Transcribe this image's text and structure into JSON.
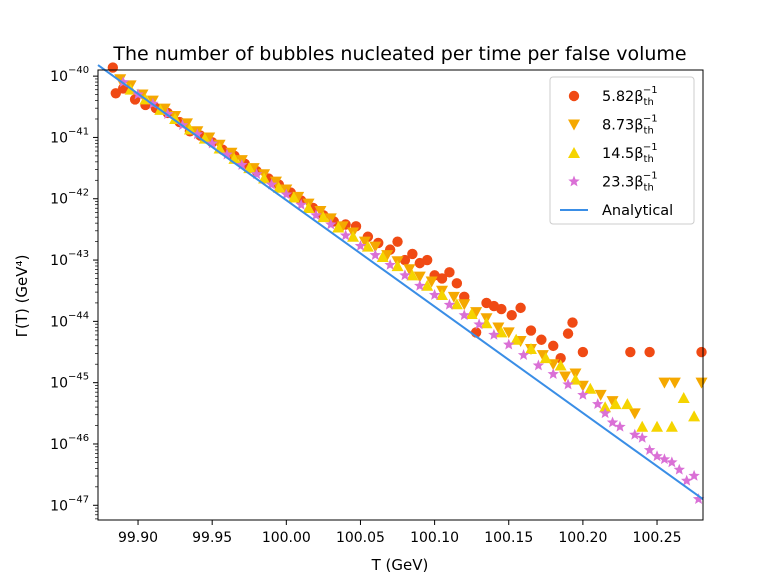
{
  "chart_data": {
    "type": "scatter",
    "title": "The number of bubbles nucleated per time per false volume",
    "xlabel": "T (GeV)",
    "ylabel": "Γ(T) (GeV⁴)",
    "xlim": [
      99.873,
      100.281
    ],
    "ylog_exp_lim": [
      -47.24,
      -39.9
    ],
    "x_ticks": [
      {
        "value": 99.9,
        "label": "99.90"
      },
      {
        "value": 99.95,
        "label": "99.95"
      },
      {
        "value": 100.0,
        "label": "100.00"
      },
      {
        "value": 100.05,
        "label": "100.05"
      },
      {
        "value": 100.1,
        "label": "100.10"
      },
      {
        "value": 100.15,
        "label": "100.15"
      },
      {
        "value": 100.2,
        "label": "100.20"
      },
      {
        "value": 100.25,
        "label": "100.25"
      }
    ],
    "y_ticks": [
      {
        "exp": -40,
        "base": "10",
        "sup": "−40"
      },
      {
        "exp": -41,
        "base": "10",
        "sup": "−41"
      },
      {
        "exp": -42,
        "base": "10",
        "sup": "−42"
      },
      {
        "exp": -43,
        "base": "10",
        "sup": "−43"
      },
      {
        "exp": -44,
        "base": "10",
        "sup": "−44"
      },
      {
        "exp": -45,
        "base": "10",
        "sup": "−45"
      },
      {
        "exp": -46,
        "base": "10",
        "sup": "−46"
      },
      {
        "exp": -47,
        "base": "10",
        "sup": "−47"
      }
    ],
    "series": [
      {
        "name": "5.82β_th^-1",
        "label_main": "5.82β",
        "label_sub": "th",
        "label_sup": "−1",
        "marker": "circle",
        "color": "#f04a14",
        "points": [
          [
            99.883,
            -39.86
          ],
          [
            99.885,
            -40.28
          ],
          [
            99.89,
            -40.2
          ],
          [
            99.898,
            -40.38
          ],
          [
            99.905,
            -40.47
          ],
          [
            99.912,
            -40.52
          ],
          [
            99.92,
            -40.6
          ],
          [
            99.928,
            -40.75
          ],
          [
            99.935,
            -40.9
          ],
          [
            99.942,
            -40.97
          ],
          [
            99.95,
            -41.08
          ],
          [
            99.957,
            -41.2
          ],
          [
            99.965,
            -41.3
          ],
          [
            99.972,
            -41.43
          ],
          [
            99.98,
            -41.55
          ],
          [
            99.988,
            -41.67
          ],
          [
            99.995,
            -41.77
          ],
          [
            100.003,
            -41.9
          ],
          [
            100.01,
            -42.03
          ],
          [
            100.018,
            -42.15
          ],
          [
            100.025,
            -42.27
          ],
          [
            100.032,
            -42.37
          ],
          [
            100.04,
            -42.42
          ],
          [
            100.047,
            -42.45
          ],
          [
            100.055,
            -42.62
          ],
          [
            100.062,
            -42.72
          ],
          [
            100.07,
            -42.83
          ],
          [
            100.075,
            -42.7
          ],
          [
            100.08,
            -43.0
          ],
          [
            100.085,
            -42.9
          ],
          [
            100.09,
            -43.05
          ],
          [
            100.095,
            -43.0
          ],
          [
            100.1,
            -43.25
          ],
          [
            100.105,
            -43.3
          ],
          [
            100.11,
            -43.2
          ],
          [
            100.115,
            -43.38
          ],
          [
            100.12,
            -43.6
          ],
          [
            100.128,
            -44.18
          ],
          [
            100.135,
            -43.7
          ],
          [
            100.14,
            -43.75
          ],
          [
            100.145,
            -43.8
          ],
          [
            100.152,
            -43.9
          ],
          [
            100.158,
            -43.78
          ],
          [
            100.165,
            -44.15
          ],
          [
            100.172,
            -44.3
          ],
          [
            100.18,
            -44.4
          ],
          [
            100.185,
            -44.6
          ],
          [
            100.19,
            -44.2
          ],
          [
            100.193,
            -44.02
          ],
          [
            100.2,
            -44.5
          ],
          [
            100.232,
            -44.5
          ],
          [
            100.245,
            -44.5
          ],
          [
            100.28,
            -44.5
          ]
        ]
      },
      {
        "name": "8.73β_th^-1",
        "label_main": "8.73β",
        "label_sub": "th",
        "label_sup": "−1",
        "marker": "triangle-down",
        "color": "#f5a800",
        "points": [
          [
            99.888,
            -40.05
          ],
          [
            99.895,
            -40.15
          ],
          [
            99.903,
            -40.3
          ],
          [
            99.91,
            -40.4
          ],
          [
            99.918,
            -40.53
          ],
          [
            99.925,
            -40.65
          ],
          [
            99.933,
            -40.77
          ],
          [
            99.94,
            -40.9
          ],
          [
            99.948,
            -41.0
          ],
          [
            99.955,
            -41.12
          ],
          [
            99.963,
            -41.25
          ],
          [
            99.97,
            -41.37
          ],
          [
            99.978,
            -41.5
          ],
          [
            99.985,
            -41.6
          ],
          [
            99.993,
            -41.72
          ],
          [
            100.0,
            -41.85
          ],
          [
            100.008,
            -41.97
          ],
          [
            100.015,
            -42.08
          ],
          [
            100.023,
            -42.2
          ],
          [
            100.03,
            -42.32
          ],
          [
            100.038,
            -42.45
          ],
          [
            100.045,
            -42.55
          ],
          [
            100.053,
            -42.7
          ],
          [
            100.06,
            -42.78
          ],
          [
            100.068,
            -42.92
          ],
          [
            100.075,
            -43.02
          ],
          [
            100.083,
            -43.15
          ],
          [
            100.09,
            -43.27
          ],
          [
            100.098,
            -43.35
          ],
          [
            100.105,
            -43.5
          ],
          [
            100.113,
            -43.6
          ],
          [
            100.12,
            -43.72
          ],
          [
            100.128,
            -43.85
          ],
          [
            100.135,
            -43.95
          ],
          [
            100.143,
            -44.1
          ],
          [
            100.15,
            -44.18
          ],
          [
            100.158,
            -44.32
          ],
          [
            100.165,
            -44.45
          ],
          [
            100.173,
            -44.55
          ],
          [
            100.18,
            -44.7
          ],
          [
            100.188,
            -44.9
          ],
          [
            100.195,
            -44.85
          ],
          [
            100.2,
            -45.05
          ],
          [
            100.212,
            -45.2
          ],
          [
            100.22,
            -45.3
          ],
          [
            100.235,
            -45.5
          ],
          [
            100.255,
            -45.0
          ],
          [
            100.262,
            -45.0
          ],
          [
            100.28,
            -45.0
          ]
        ]
      },
      {
        "name": "14.5β_th^-1",
        "label_main": "14.5β",
        "label_sub": "th",
        "label_sup": "−1",
        "marker": "triangle-up",
        "color": "#f5d400",
        "points": [
          [
            99.895,
            -40.22
          ],
          [
            99.905,
            -40.38
          ],
          [
            99.915,
            -40.55
          ],
          [
            99.925,
            -40.7
          ],
          [
            99.935,
            -40.87
          ],
          [
            99.945,
            -41.02
          ],
          [
            99.955,
            -41.18
          ],
          [
            99.965,
            -41.35
          ],
          [
            99.975,
            -41.5
          ],
          [
            99.985,
            -41.67
          ],
          [
            99.995,
            -41.82
          ],
          [
            100.005,
            -41.98
          ],
          [
            100.015,
            -42.15
          ],
          [
            100.025,
            -42.3
          ],
          [
            100.035,
            -42.47
          ],
          [
            100.045,
            -42.62
          ],
          [
            100.055,
            -42.78
          ],
          [
            100.065,
            -42.95
          ],
          [
            100.075,
            -43.1
          ],
          [
            100.085,
            -43.25
          ],
          [
            100.095,
            -43.42
          ],
          [
            100.105,
            -43.57
          ],
          [
            100.115,
            -43.72
          ],
          [
            100.125,
            -43.88
          ],
          [
            100.135,
            -44.03
          ],
          [
            100.145,
            -44.18
          ],
          [
            100.155,
            -44.3
          ],
          [
            100.165,
            -44.45
          ],
          [
            100.175,
            -44.6
          ],
          [
            100.185,
            -44.72
          ],
          [
            100.195,
            -44.95
          ],
          [
            100.205,
            -45.1
          ],
          [
            100.215,
            -45.4
          ],
          [
            100.222,
            -45.35
          ],
          [
            100.23,
            -45.35
          ],
          [
            100.24,
            -45.72
          ],
          [
            100.25,
            -45.72
          ],
          [
            100.26,
            -45.72
          ],
          [
            100.268,
            -45.25
          ],
          [
            100.275,
            -45.55
          ]
        ]
      },
      {
        "name": "23.3β_th^-1",
        "label_main": "23.3β",
        "label_sub": "th",
        "label_sup": "−1",
        "marker": "star",
        "color": "#da70d6",
        "points": [
          [
            99.89,
            -40.1
          ],
          [
            99.9,
            -40.3
          ],
          [
            99.91,
            -40.45
          ],
          [
            99.92,
            -40.62
          ],
          [
            99.93,
            -40.8
          ],
          [
            99.94,
            -40.95
          ],
          [
            99.95,
            -41.1
          ],
          [
            99.96,
            -41.28
          ],
          [
            99.97,
            -41.45
          ],
          [
            99.98,
            -41.6
          ],
          [
            99.99,
            -41.77
          ],
          [
            100.0,
            -41.93
          ],
          [
            100.01,
            -42.1
          ],
          [
            100.02,
            -42.27
          ],
          [
            100.03,
            -42.42
          ],
          [
            100.04,
            -42.6
          ],
          [
            100.05,
            -42.77
          ],
          [
            100.06,
            -42.92
          ],
          [
            100.07,
            -43.08
          ],
          [
            100.08,
            -43.25
          ],
          [
            100.09,
            -43.42
          ],
          [
            100.1,
            -43.57
          ],
          [
            100.11,
            -43.73
          ],
          [
            100.12,
            -43.9
          ],
          [
            100.13,
            -44.05
          ],
          [
            100.14,
            -44.22
          ],
          [
            100.15,
            -44.38
          ],
          [
            100.16,
            -44.55
          ],
          [
            100.17,
            -44.72
          ],
          [
            100.18,
            -44.86
          ],
          [
            100.19,
            -45.03
          ],
          [
            100.2,
            -45.2
          ],
          [
            100.21,
            -45.35
          ],
          [
            100.215,
            -45.5
          ],
          [
            100.22,
            -45.65
          ],
          [
            100.225,
            -45.72
          ],
          [
            100.235,
            -45.85
          ],
          [
            100.24,
            -45.9
          ],
          [
            100.245,
            -46.1
          ],
          [
            100.25,
            -46.2
          ],
          [
            100.255,
            -46.25
          ],
          [
            100.26,
            -46.3
          ],
          [
            100.265,
            -46.42
          ],
          [
            100.27,
            -46.6
          ],
          [
            100.275,
            -46.52
          ],
          [
            100.278,
            -46.9
          ]
        ]
      }
    ],
    "analytical": {
      "name": "Analytical",
      "color": "#3a8ee6",
      "points": [
        [
          99.873,
          -39.82
        ],
        [
          100.281,
          -46.9
        ]
      ]
    },
    "legend_position": "upper right"
  }
}
